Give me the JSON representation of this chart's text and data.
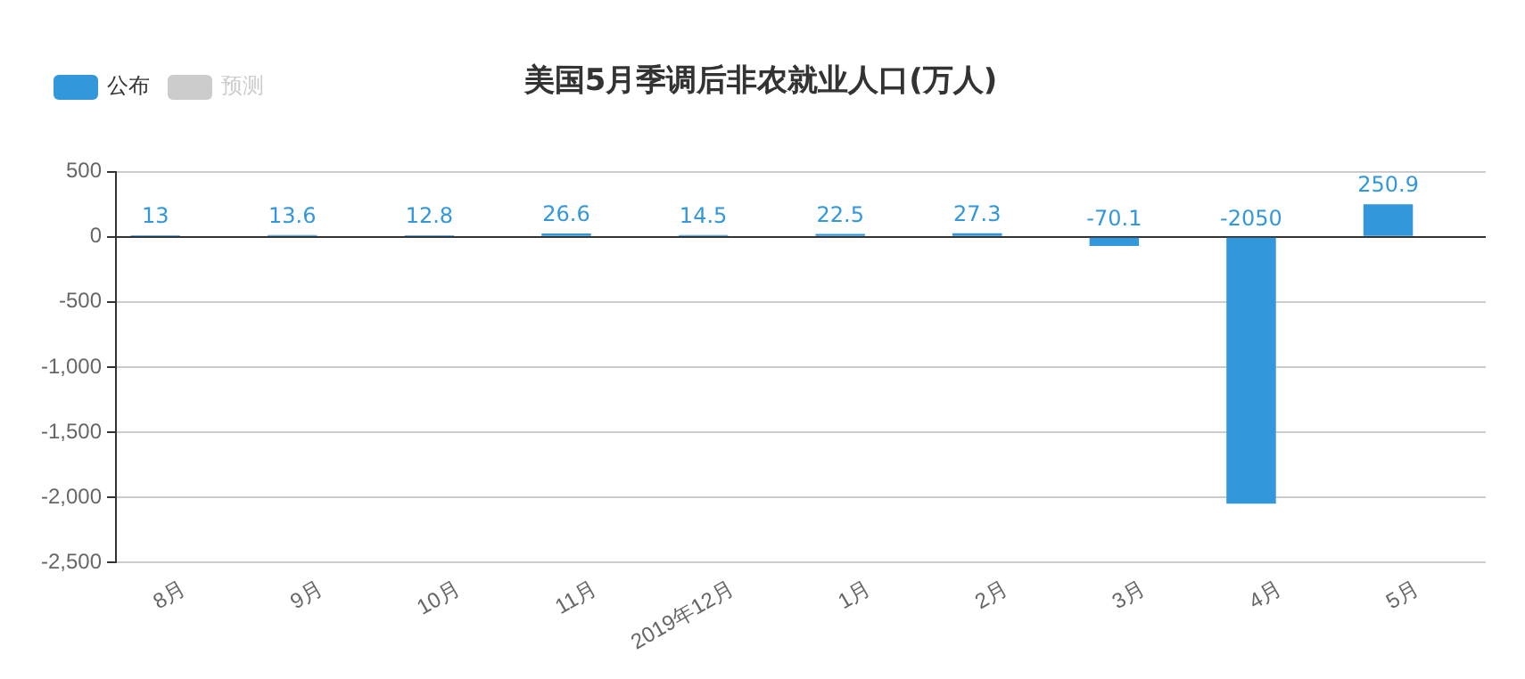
{
  "chart_data": {
    "type": "bar",
    "title": "美国5月季调后非农就业人口(万人)",
    "categories": [
      "8月",
      "9月",
      "10月",
      "11月",
      "2019年12月",
      "1月",
      "2月",
      "3月",
      "4月",
      "5月"
    ],
    "series": [
      {
        "name": "公布",
        "color": "#3398db",
        "values": [
          13,
          13.6,
          12.8,
          26.6,
          14.5,
          22.5,
          27.3,
          -70.1,
          -2050,
          250.9
        ]
      },
      {
        "name": "预测",
        "color": "#cccccc",
        "values": [
          null,
          null,
          null,
          null,
          null,
          null,
          null,
          null,
          null,
          null
        ]
      }
    ],
    "ylim": [
      -2500,
      500
    ],
    "yticks": [
      500,
      0,
      {
        "value": -500,
        "label": "-500"
      },
      {
        "value": -1000,
        "label": "-1,000"
      },
      {
        "value": -1500,
        "label": "-1,500"
      },
      {
        "value": -2000,
        "label": "-2,000"
      },
      {
        "value": -2500,
        "label": "-2,500"
      }
    ],
    "grid": "y",
    "legend": "top left",
    "data_labels": true
  }
}
